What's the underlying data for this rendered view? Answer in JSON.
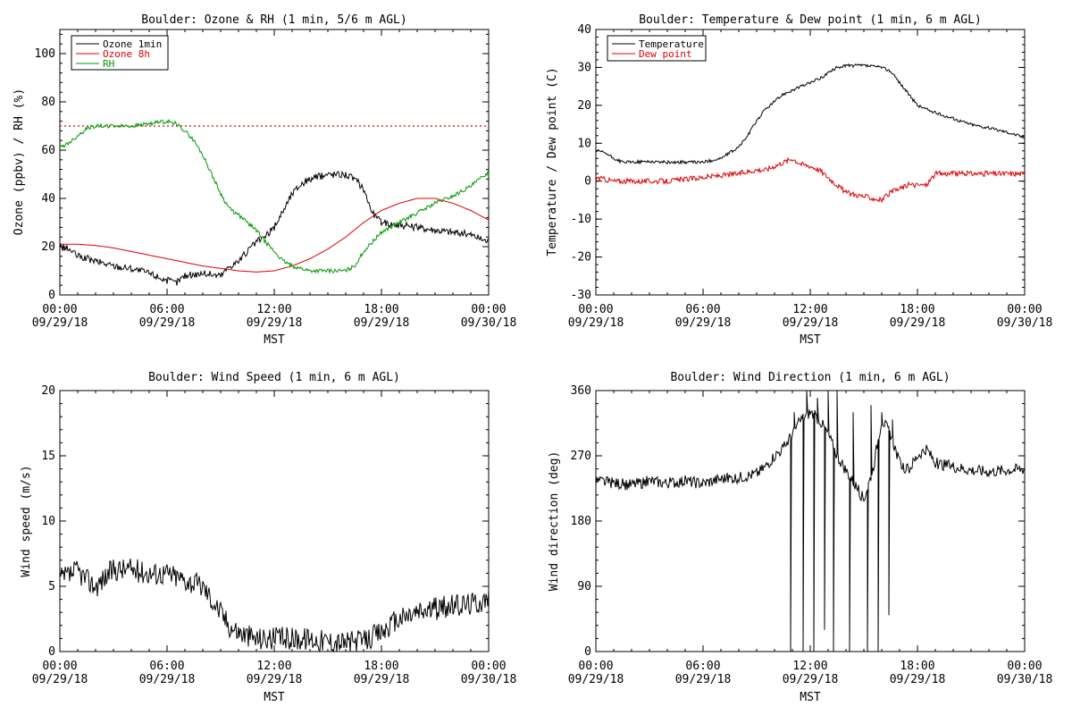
{
  "chart_data": [
    {
      "id": "ozone_rh",
      "type": "line",
      "title": "Boulder: Ozone & RH (1 min, 5/6 m AGL)",
      "ylabel": "Ozone (ppbv) / RH (%)",
      "xlabel": "MST",
      "ylim": [
        0,
        110
      ],
      "yticks": [
        0,
        20,
        40,
        60,
        80,
        100
      ],
      "xlim": [
        0,
        24
      ],
      "xtick_labels": [
        [
          "00:00",
          "09/29/18"
        ],
        [
          "06:00",
          "09/29/18"
        ],
        [
          "12:00",
          "09/29/18"
        ],
        [
          "18:00",
          "09/29/18"
        ],
        [
          "00:00",
          "09/30/18"
        ]
      ],
      "legend_position": "top-left",
      "hline": {
        "y": 70,
        "color": "#dd0000",
        "style": "dotted"
      },
      "series": [
        {
          "name": "Ozone 1min",
          "color": "#000000",
          "x": [
            0,
            0.5,
            1,
            2,
            3,
            4,
            5,
            6,
            6.5,
            7,
            8,
            9,
            9.5,
            10,
            10.5,
            11,
            11.5,
            12,
            12.5,
            13,
            13.5,
            14,
            15,
            16,
            16.5,
            17,
            17.5,
            18,
            19,
            20,
            21,
            22,
            23,
            24
          ],
          "y": [
            20,
            19,
            16,
            14,
            12,
            11,
            9,
            6,
            5,
            8,
            9,
            8,
            12,
            14,
            18,
            22,
            24,
            28,
            35,
            42,
            46,
            48,
            50,
            50,
            48,
            44,
            34,
            30,
            29,
            28,
            27,
            26,
            25,
            22
          ],
          "noise": 1.5
        },
        {
          "name": "Ozone 8h",
          "color": "#dd0000",
          "x": [
            0,
            1,
            2,
            3,
            4,
            5,
            6,
            7,
            8,
            9,
            10,
            11,
            12,
            13,
            14,
            15,
            16,
            17,
            18,
            19,
            20,
            21,
            22,
            23,
            24
          ],
          "y": [
            21,
            21,
            20.5,
            19.5,
            18,
            16.5,
            15,
            13.5,
            12,
            11,
            10,
            9.5,
            10,
            12,
            15,
            19,
            24,
            30,
            35,
            38,
            40,
            40,
            38,
            35,
            31
          ],
          "noise": 0
        },
        {
          "name": "RH",
          "color": "#009900",
          "x": [
            0,
            0.5,
            1,
            1.5,
            2,
            3,
            4,
            5,
            6,
            6.5,
            7,
            7.5,
            8,
            8.5,
            9,
            9.3,
            9.6,
            10,
            10.5,
            11,
            11.5,
            12,
            12.5,
            13,
            13.5,
            14,
            15,
            16,
            16.5,
            17,
            17.5,
            18,
            19,
            20,
            21,
            22,
            23,
            24
          ],
          "y": [
            61,
            63,
            66,
            69,
            70,
            70,
            70,
            71,
            72,
            71,
            68,
            64,
            58,
            50,
            42,
            38,
            35,
            33,
            30,
            27,
            22,
            18,
            14,
            12,
            11,
            10,
            10,
            10,
            12,
            18,
            22,
            26,
            30,
            34,
            38,
            41,
            45,
            51
          ],
          "noise": 0.8
        }
      ]
    },
    {
      "id": "temp_dew",
      "type": "line",
      "title": "Boulder: Temperature & Dew point (1 min, 6 m AGL)",
      "ylabel": "Temperature / Dew point (C)",
      "xlabel": "MST",
      "ylim": [
        -30,
        40
      ],
      "yticks": [
        -30,
        -20,
        -10,
        0,
        10,
        20,
        30,
        40
      ],
      "xlim": [
        0,
        24
      ],
      "xtick_labels": [
        [
          "00:00",
          "09/29/18"
        ],
        [
          "06:00",
          "09/29/18"
        ],
        [
          "12:00",
          "09/29/18"
        ],
        [
          "18:00",
          "09/29/18"
        ],
        [
          "00:00",
          "09/30/18"
        ]
      ],
      "legend_position": "top-left",
      "series": [
        {
          "name": "Temperature",
          "color": "#000000",
          "x": [
            0,
            0.5,
            1,
            1.5,
            2,
            3,
            4,
            5,
            6,
            7,
            8,
            8.5,
            9,
            9.5,
            10,
            10.5,
            11,
            11.5,
            12,
            12.5,
            13,
            13.5,
            14,
            15,
            16,
            16.5,
            17,
            17.5,
            18,
            19,
            20,
            21,
            22,
            23,
            24
          ],
          "y": [
            8,
            7.5,
            6,
            5,
            5,
            5.2,
            5,
            5,
            5,
            6,
            9,
            12,
            16,
            19,
            21,
            23,
            24,
            25,
            26,
            27,
            28.5,
            30,
            30.5,
            30.5,
            30,
            29,
            26,
            23,
            20,
            18,
            16.5,
            15,
            14,
            13,
            11.5
          ],
          "noise": 0.4
        },
        {
          "name": "Dew point",
          "color": "#dd0000",
          "x": [
            0,
            0.5,
            1,
            2,
            3,
            4,
            5,
            6,
            7,
            8,
            9,
            9.5,
            10,
            10.5,
            11,
            11.5,
            12,
            12.5,
            13,
            13.5,
            14,
            15,
            16,
            16.5,
            17,
            17.5,
            18,
            18.5,
            19,
            20,
            21,
            22,
            23,
            24
          ],
          "y": [
            1,
            0.5,
            0,
            0,
            0,
            0,
            0.5,
            1,
            1.5,
            2,
            3,
            3,
            4,
            5,
            6,
            4.5,
            4,
            3,
            1,
            -1,
            -3,
            -4,
            -5,
            -3,
            -2,
            -1,
            -1,
            -1,
            2,
            2,
            2,
            2,
            2,
            2
          ],
          "noise": 0.7
        }
      ]
    },
    {
      "id": "wind_speed",
      "type": "line",
      "title": "Boulder: Wind Speed (1 min, 6 m AGL)",
      "ylabel": "Wind speed (m/s)",
      "xlabel": "MST",
      "ylim": [
        0,
        20
      ],
      "yticks": [
        0,
        5,
        10,
        15,
        20
      ],
      "xlim": [
        0,
        24
      ],
      "xtick_labels": [
        [
          "00:00",
          "09/29/18"
        ],
        [
          "06:00",
          "09/29/18"
        ],
        [
          "12:00",
          "09/29/18"
        ],
        [
          "18:00",
          "09/29/18"
        ],
        [
          "00:00",
          "09/30/18"
        ]
      ],
      "series": [
        {
          "color": "#000000",
          "x": [
            0,
            0.5,
            1,
            1.5,
            2,
            3,
            4,
            5,
            6,
            7,
            8,
            8.5,
            9,
            9.5,
            10,
            11,
            12,
            13,
            14,
            15,
            16,
            17,
            18,
            19,
            20,
            21,
            22,
            23,
            24
          ],
          "y": [
            5.5,
            5.8,
            6.2,
            5.5,
            5,
            6.3,
            6.3,
            6,
            6,
            5.5,
            5,
            4,
            3,
            2,
            1.5,
            1,
            1,
            1,
            1,
            0.8,
            0.7,
            0.8,
            1.5,
            2.5,
            3,
            3.3,
            3.5,
            3.7,
            4
          ],
          "noise": 0.9
        }
      ]
    },
    {
      "id": "wind_dir",
      "type": "line",
      "title": "Boulder: Wind Direction (1 min, 6 m AGL)",
      "ylabel": "Wind direction (deg)",
      "xlabel": "MST",
      "ylim": [
        0,
        360
      ],
      "yticks": [
        0,
        90,
        180,
        270,
        360
      ],
      "xlim": [
        0,
        24
      ],
      "xtick_labels": [
        [
          "00:00",
          "09/29/18"
        ],
        [
          "06:00",
          "09/29/18"
        ],
        [
          "12:00",
          "09/29/18"
        ],
        [
          "18:00",
          "09/29/18"
        ],
        [
          "00:00",
          "09/30/18"
        ]
      ],
      "series": [
        {
          "color": "#000000",
          "x": [
            0,
            1,
            2,
            3,
            4,
            5,
            6,
            7,
            8,
            9,
            9.5,
            10,
            10.5,
            11,
            11.5,
            12,
            12.5,
            13,
            13.5,
            14,
            14.5,
            15,
            15.5,
            16,
            16.5,
            17,
            17.5,
            18,
            18.5,
            19,
            20,
            21,
            22,
            23,
            24
          ],
          "y": [
            235,
            232,
            230,
            235,
            232,
            235,
            232,
            238,
            240,
            245,
            255,
            270,
            280,
            300,
            320,
            330,
            320,
            300,
            270,
            250,
            230,
            210,
            250,
            320,
            300,
            260,
            250,
            270,
            280,
            260,
            255,
            250,
            248,
            250,
            252
          ],
          "noise": 8,
          "spikes": [
            [
              10.9,
              0
            ],
            [
              11.1,
              330
            ],
            [
              11.6,
              0
            ],
            [
              11.8,
              360
            ],
            [
              12.2,
              0
            ],
            [
              12.4,
              350
            ],
            [
              12.8,
              30
            ],
            [
              13.0,
              360
            ],
            [
              13.3,
              0
            ],
            [
              13.5,
              360
            ],
            [
              14.2,
              0
            ],
            [
              14.4,
              330
            ],
            [
              15.2,
              0
            ],
            [
              15.4,
              340
            ],
            [
              15.8,
              0
            ],
            [
              16.0,
              330
            ],
            [
              16.4,
              50
            ],
            [
              16.6,
              320
            ]
          ]
        }
      ]
    }
  ]
}
